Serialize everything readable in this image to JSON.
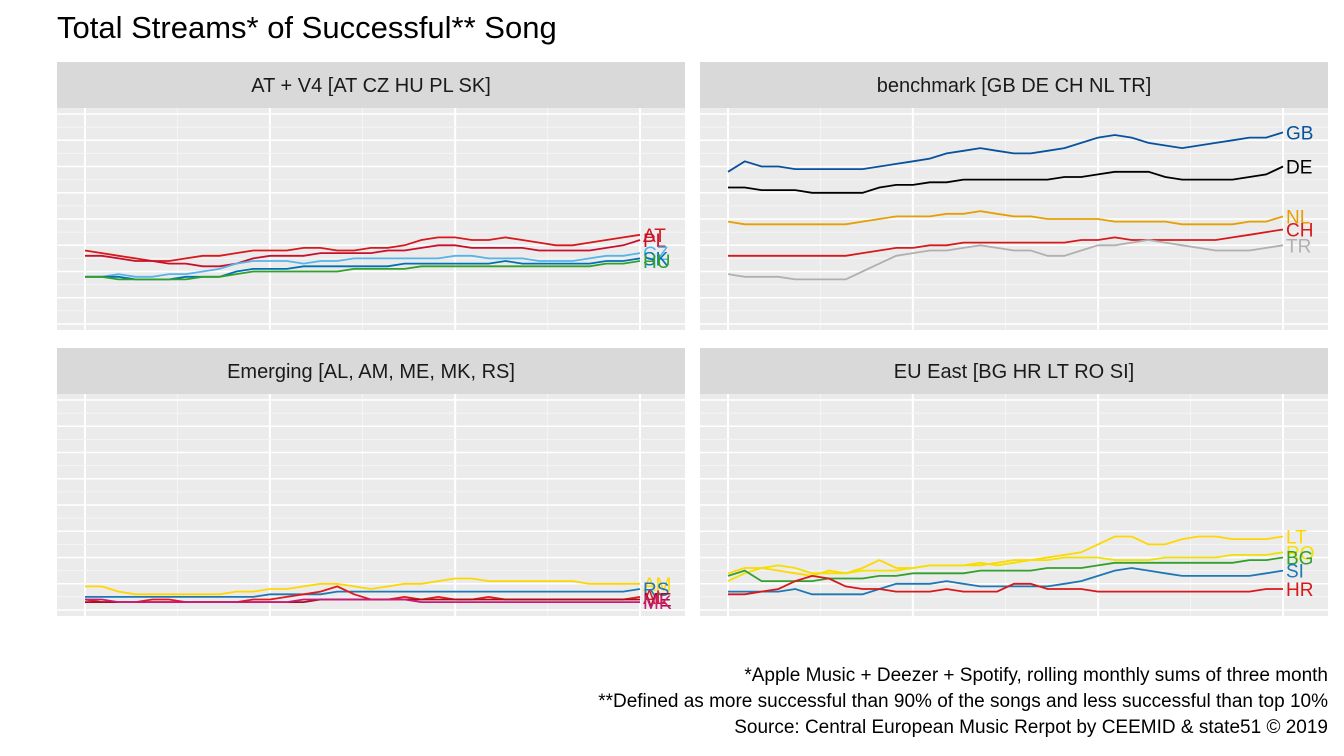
{
  "title": "Total Streams* of Successful** Song",
  "captions": {
    "line1": "*Apple Music + Deezer + Spotify, rolling monthly sums of three month",
    "line2": "**Defined as more successful than 90% of the songs and less successful than top 10%",
    "line3": "Source: Central European Music Rerpot by CEEMID & state51 © 2019"
  },
  "chart_data": [
    {
      "type": "line",
      "facet": "AT + V4 [AT CZ HU PL SK]",
      "x": [
        0,
        1,
        2,
        3,
        4,
        5,
        6,
        7,
        8,
        9,
        10,
        11,
        12,
        13,
        14,
        15,
        16,
        17,
        18,
        19,
        20,
        21,
        22,
        23,
        24,
        25,
        26,
        27,
        28,
        29,
        30,
        31,
        32,
        33
      ],
      "ylim": [
        0,
        8
      ],
      "series": [
        {
          "name": "AT",
          "color": "#d7191c",
          "values": [
            2.8,
            2.7,
            2.6,
            2.5,
            2.4,
            2.4,
            2.5,
            2.6,
            2.6,
            2.7,
            2.8,
            2.8,
            2.8,
            2.9,
            2.9,
            2.8,
            2.8,
            2.9,
            2.9,
            3.0,
            3.2,
            3.3,
            3.3,
            3.2,
            3.2,
            3.3,
            3.2,
            3.1,
            3.0,
            3.0,
            3.1,
            3.2,
            3.3,
            3.4
          ]
        },
        {
          "name": "PL",
          "color": "#c8102e",
          "values": [
            2.6,
            2.6,
            2.5,
            2.4,
            2.4,
            2.3,
            2.3,
            2.2,
            2.2,
            2.3,
            2.5,
            2.6,
            2.6,
            2.6,
            2.7,
            2.7,
            2.7,
            2.7,
            2.8,
            2.8,
            2.9,
            3.0,
            3.0,
            2.9,
            2.9,
            2.9,
            2.9,
            2.8,
            2.8,
            2.8,
            2.8,
            2.9,
            3.0,
            3.2
          ]
        },
        {
          "name": "CZ",
          "color": "#56b4e9",
          "values": [
            1.8,
            1.8,
            1.9,
            1.8,
            1.8,
            1.9,
            1.9,
            2.0,
            2.1,
            2.3,
            2.4,
            2.4,
            2.4,
            2.3,
            2.4,
            2.4,
            2.5,
            2.5,
            2.5,
            2.5,
            2.5,
            2.5,
            2.6,
            2.6,
            2.5,
            2.5,
            2.5,
            2.4,
            2.4,
            2.4,
            2.5,
            2.6,
            2.6,
            2.7
          ]
        },
        {
          "name": "SK",
          "color": "#0072b2",
          "values": [
            1.8,
            1.8,
            1.8,
            1.7,
            1.7,
            1.7,
            1.8,
            1.8,
            1.8,
            2.0,
            2.1,
            2.1,
            2.1,
            2.2,
            2.2,
            2.2,
            2.2,
            2.2,
            2.2,
            2.3,
            2.3,
            2.3,
            2.3,
            2.3,
            2.3,
            2.4,
            2.3,
            2.3,
            2.3,
            2.3,
            2.3,
            2.4,
            2.4,
            2.5
          ]
        },
        {
          "name": "HU",
          "color": "#33a02c",
          "values": [
            1.8,
            1.8,
            1.7,
            1.7,
            1.7,
            1.7,
            1.7,
            1.8,
            1.8,
            1.9,
            2.0,
            2.0,
            2.0,
            2.0,
            2.0,
            2.0,
            2.1,
            2.1,
            2.1,
            2.1,
            2.2,
            2.2,
            2.2,
            2.2,
            2.2,
            2.2,
            2.2,
            2.2,
            2.2,
            2.2,
            2.2,
            2.3,
            2.3,
            2.4
          ]
        }
      ]
    },
    {
      "type": "line",
      "facet": "benchmark [GB DE CH NL TR]",
      "x": [
        0,
        1,
        2,
        3,
        4,
        5,
        6,
        7,
        8,
        9,
        10,
        11,
        12,
        13,
        14,
        15,
        16,
        17,
        18,
        19,
        20,
        21,
        22,
        23,
        24,
        25,
        26,
        27,
        28,
        29,
        30,
        31,
        32,
        33
      ],
      "ylim": [
        0,
        8
      ],
      "series": [
        {
          "name": "GB",
          "color": "#08519c",
          "values": [
            5.8,
            6.2,
            6.0,
            6.0,
            5.9,
            5.9,
            5.9,
            5.9,
            5.9,
            6.0,
            6.1,
            6.2,
            6.3,
            6.5,
            6.6,
            6.7,
            6.6,
            6.5,
            6.5,
            6.6,
            6.7,
            6.9,
            7.1,
            7.2,
            7.1,
            6.9,
            6.8,
            6.7,
            6.8,
            6.9,
            7.0,
            7.1,
            7.1,
            7.3
          ]
        },
        {
          "name": "DE",
          "color": "#000000",
          "values": [
            5.2,
            5.2,
            5.1,
            5.1,
            5.1,
            5.0,
            5.0,
            5.0,
            5.0,
            5.2,
            5.3,
            5.3,
            5.4,
            5.4,
            5.5,
            5.5,
            5.5,
            5.5,
            5.5,
            5.5,
            5.6,
            5.6,
            5.7,
            5.8,
            5.8,
            5.8,
            5.6,
            5.5,
            5.5,
            5.5,
            5.5,
            5.6,
            5.7,
            6.0
          ]
        },
        {
          "name": "NL",
          "color": "#e69f00",
          "values": [
            3.9,
            3.8,
            3.8,
            3.8,
            3.8,
            3.8,
            3.8,
            3.8,
            3.9,
            4.0,
            4.1,
            4.1,
            4.1,
            4.2,
            4.2,
            4.3,
            4.2,
            4.1,
            4.1,
            4.0,
            4.0,
            4.0,
            4.0,
            3.9,
            3.9,
            3.9,
            3.9,
            3.8,
            3.8,
            3.8,
            3.8,
            3.9,
            3.9,
            4.1
          ]
        },
        {
          "name": "CH",
          "color": "#d7191c",
          "values": [
            2.6,
            2.6,
            2.6,
            2.6,
            2.6,
            2.6,
            2.6,
            2.6,
            2.7,
            2.8,
            2.9,
            2.9,
            3.0,
            3.0,
            3.1,
            3.1,
            3.1,
            3.1,
            3.1,
            3.1,
            3.1,
            3.2,
            3.2,
            3.3,
            3.2,
            3.2,
            3.2,
            3.2,
            3.2,
            3.2,
            3.3,
            3.4,
            3.5,
            3.6
          ]
        },
        {
          "name": "TR",
          "color": "#b0b0b0",
          "values": [
            1.9,
            1.8,
            1.8,
            1.8,
            1.7,
            1.7,
            1.7,
            1.7,
            2.0,
            2.3,
            2.6,
            2.7,
            2.8,
            2.8,
            2.9,
            3.0,
            2.9,
            2.8,
            2.8,
            2.6,
            2.6,
            2.8,
            3.0,
            3.0,
            3.1,
            3.2,
            3.1,
            3.0,
            2.9,
            2.8,
            2.8,
            2.8,
            2.9,
            3.0
          ]
        }
      ]
    },
    {
      "type": "line",
      "facet": "Emerging [AL, AM, ME, MK, RS]",
      "x": [
        0,
        1,
        2,
        3,
        4,
        5,
        6,
        7,
        8,
        9,
        10,
        11,
        12,
        13,
        14,
        15,
        16,
        17,
        18,
        19,
        20,
        21,
        22,
        23,
        24,
        25,
        26,
        27,
        28,
        29,
        30,
        31,
        32,
        33
      ],
      "ylim": [
        0,
        8
      ],
      "series": [
        {
          "name": "AM",
          "color": "#ffd700",
          "values": [
            0.9,
            0.9,
            0.7,
            0.6,
            0.6,
            0.6,
            0.6,
            0.6,
            0.6,
            0.7,
            0.7,
            0.8,
            0.8,
            0.9,
            1.0,
            1.0,
            0.9,
            0.8,
            0.9,
            1.0,
            1.0,
            1.1,
            1.2,
            1.2,
            1.1,
            1.1,
            1.1,
            1.1,
            1.1,
            1.1,
            1.0,
            1.0,
            1.0,
            1.0
          ]
        },
        {
          "name": "RS",
          "color": "#1f78b4",
          "values": [
            0.5,
            0.5,
            0.5,
            0.5,
            0.5,
            0.5,
            0.5,
            0.5,
            0.5,
            0.5,
            0.5,
            0.6,
            0.6,
            0.6,
            0.6,
            0.7,
            0.7,
            0.7,
            0.7,
            0.7,
            0.7,
            0.7,
            0.7,
            0.7,
            0.7,
            0.7,
            0.7,
            0.7,
            0.7,
            0.7,
            0.7,
            0.7,
            0.7,
            0.8
          ]
        },
        {
          "name": "AL",
          "color": "#e31a1c",
          "values": [
            0.4,
            0.3,
            0.3,
            0.3,
            0.4,
            0.4,
            0.3,
            0.3,
            0.3,
            0.3,
            0.4,
            0.4,
            0.5,
            0.6,
            0.7,
            0.9,
            0.6,
            0.4,
            0.4,
            0.5,
            0.4,
            0.5,
            0.4,
            0.4,
            0.5,
            0.4,
            0.4,
            0.4,
            0.4,
            0.4,
            0.4,
            0.4,
            0.4,
            0.5
          ]
        },
        {
          "name": "ME",
          "color": "#a50f15",
          "values": [
            0.3,
            0.3,
            0.3,
            0.3,
            0.3,
            0.3,
            0.3,
            0.3,
            0.3,
            0.3,
            0.3,
            0.3,
            0.3,
            0.3,
            0.4,
            0.4,
            0.4,
            0.4,
            0.4,
            0.4,
            0.4,
            0.4,
            0.4,
            0.4,
            0.4,
            0.4,
            0.4,
            0.4,
            0.4,
            0.4,
            0.4,
            0.4,
            0.4,
            0.4
          ]
        },
        {
          "name": "MK",
          "color": "#c51b7d",
          "values": [
            0.4,
            0.4,
            0.3,
            0.3,
            0.3,
            0.3,
            0.3,
            0.3,
            0.3,
            0.3,
            0.3,
            0.3,
            0.3,
            0.4,
            0.4,
            0.4,
            0.4,
            0.4,
            0.4,
            0.4,
            0.3,
            0.3,
            0.3,
            0.3,
            0.3,
            0.3,
            0.3,
            0.3,
            0.3,
            0.3,
            0.3,
            0.3,
            0.3,
            0.3
          ]
        }
      ]
    },
    {
      "type": "line",
      "facet": "EU East [BG HR LT RO SI]",
      "x": [
        0,
        1,
        2,
        3,
        4,
        5,
        6,
        7,
        8,
        9,
        10,
        11,
        12,
        13,
        14,
        15,
        16,
        17,
        18,
        19,
        20,
        21,
        22,
        23,
        24,
        25,
        26,
        27,
        28,
        29,
        30,
        31,
        32,
        33
      ],
      "ylim": [
        0,
        8
      ],
      "series": [
        {
          "name": "LT",
          "color": "#ffd700",
          "values": [
            1.4,
            1.6,
            1.6,
            1.5,
            1.4,
            1.3,
            1.5,
            1.4,
            1.6,
            1.9,
            1.6,
            1.6,
            1.7,
            1.7,
            1.7,
            1.7,
            1.8,
            1.9,
            1.9,
            2.0,
            2.1,
            2.2,
            2.5,
            2.8,
            2.8,
            2.5,
            2.5,
            2.7,
            2.8,
            2.8,
            2.7,
            2.7,
            2.7,
            2.8
          ]
        },
        {
          "name": "RO",
          "color": "#f2e000",
          "values": [
            1.1,
            1.4,
            1.6,
            1.7,
            1.6,
            1.4,
            1.4,
            1.4,
            1.5,
            1.5,
            1.5,
            1.6,
            1.7,
            1.7,
            1.7,
            1.8,
            1.7,
            1.8,
            1.9,
            1.9,
            2.0,
            2.0,
            2.0,
            1.9,
            1.9,
            1.9,
            2.0,
            2.0,
            2.0,
            2.0,
            2.1,
            2.1,
            2.1,
            2.2
          ]
        },
        {
          "name": "BG",
          "color": "#33a02c",
          "values": [
            1.3,
            1.5,
            1.1,
            1.1,
            1.1,
            1.1,
            1.2,
            1.2,
            1.2,
            1.3,
            1.3,
            1.4,
            1.4,
            1.4,
            1.4,
            1.5,
            1.5,
            1.5,
            1.5,
            1.6,
            1.6,
            1.6,
            1.7,
            1.8,
            1.8,
            1.8,
            1.8,
            1.8,
            1.8,
            1.8,
            1.8,
            1.9,
            1.9,
            2.0
          ]
        },
        {
          "name": "SI",
          "color": "#1f78b4",
          "values": [
            0.7,
            0.7,
            0.7,
            0.7,
            0.8,
            0.6,
            0.6,
            0.6,
            0.6,
            0.8,
            1.0,
            1.0,
            1.0,
            1.1,
            1.0,
            0.9,
            0.9,
            0.9,
            0.9,
            0.9,
            1.0,
            1.1,
            1.3,
            1.5,
            1.6,
            1.5,
            1.4,
            1.3,
            1.3,
            1.3,
            1.3,
            1.3,
            1.4,
            1.5
          ]
        },
        {
          "name": "HR",
          "color": "#d7191c",
          "values": [
            0.6,
            0.6,
            0.7,
            0.8,
            1.1,
            1.3,
            1.2,
            0.9,
            0.8,
            0.8,
            0.7,
            0.7,
            0.7,
            0.8,
            0.7,
            0.7,
            0.7,
            1.0,
            1.0,
            0.8,
            0.8,
            0.8,
            0.7,
            0.7,
            0.7,
            0.7,
            0.7,
            0.7,
            0.7,
            0.7,
            0.7,
            0.7,
            0.8,
            0.8
          ]
        }
      ]
    }
  ]
}
